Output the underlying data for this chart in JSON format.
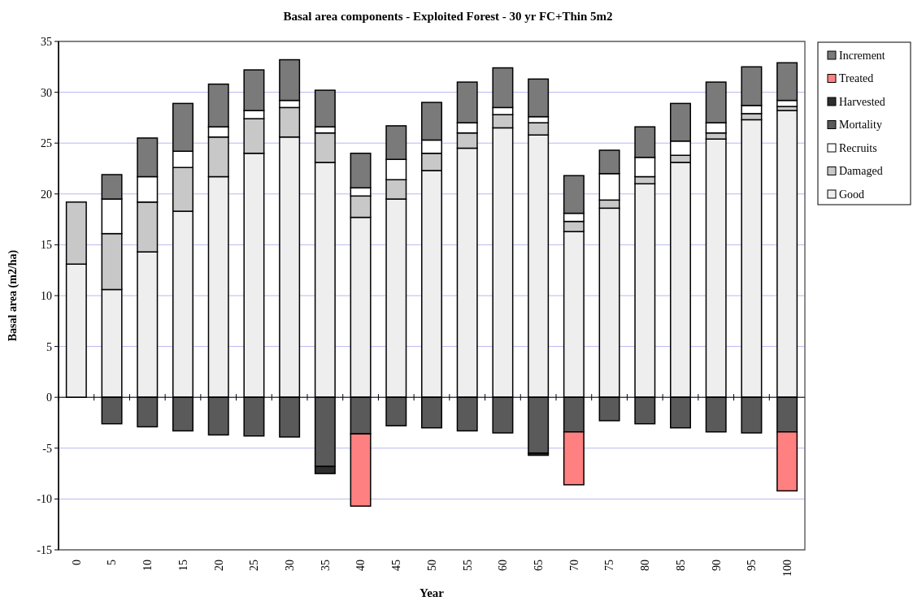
{
  "chart_data": {
    "type": "bar",
    "stacked": true,
    "title": "Basal area components - Exploited Forest - 30 yr FC+Thin 5m2",
    "xlabel": "Year",
    "ylabel": "Basal area (m2/ha)",
    "categories": [
      "0",
      "5",
      "10",
      "15",
      "20",
      "25",
      "30",
      "35",
      "40",
      "45",
      "50",
      "55",
      "60",
      "65",
      "70",
      "75",
      "80",
      "85",
      "90",
      "95",
      "100"
    ],
    "ylim": [
      -15,
      35
    ],
    "yticks": [
      -15,
      -10,
      -5,
      0,
      5,
      10,
      15,
      20,
      25,
      30,
      35
    ],
    "grid": "y",
    "legend": "right",
    "series": [
      {
        "name": "Good",
        "color": "#eeeeee",
        "values": [
          13.1,
          10.6,
          14.3,
          18.3,
          21.7,
          24.0,
          25.6,
          23.1,
          17.7,
          19.5,
          22.3,
          24.5,
          26.5,
          25.8,
          16.3,
          18.6,
          21.0,
          23.1,
          25.4,
          27.3,
          28.2
        ]
      },
      {
        "name": "Damaged",
        "color": "#c8c8c8",
        "values": [
          6.1,
          5.5,
          4.9,
          4.3,
          3.9,
          3.4,
          2.9,
          2.9,
          2.1,
          1.9,
          1.7,
          1.5,
          1.3,
          1.2,
          1.0,
          0.8,
          0.7,
          0.7,
          0.6,
          0.6,
          0.4
        ]
      },
      {
        "name": "Recruits",
        "color": "#ffffff",
        "values": [
          null,
          3.4,
          2.5,
          1.6,
          1.0,
          0.8,
          0.7,
          0.6,
          0.8,
          2.0,
          1.3,
          1.0,
          0.7,
          0.6,
          0.8,
          2.6,
          1.9,
          1.4,
          1.0,
          0.8,
          0.6
        ]
      },
      {
        "name": "Mortality",
        "color": "#5a5a5a",
        "values": [
          null,
          -2.6,
          -2.9,
          -3.3,
          -3.7,
          -3.8,
          -3.9,
          -6.8,
          -3.6,
          -2.8,
          -3.0,
          -3.3,
          -3.5,
          -5.5,
          -3.4,
          -2.3,
          -2.6,
          -3.0,
          -3.4,
          -3.5,
          -3.4
        ]
      },
      {
        "name": "Harvested",
        "color": "#2e2e2e",
        "values": [
          null,
          null,
          null,
          null,
          null,
          null,
          null,
          -0.7,
          null,
          null,
          null,
          null,
          null,
          -0.2,
          null,
          null,
          null,
          null,
          null,
          null,
          null
        ]
      },
      {
        "name": "Treated",
        "color": "#ff8080",
        "values": [
          null,
          null,
          null,
          null,
          null,
          null,
          null,
          null,
          -7.1,
          null,
          null,
          null,
          null,
          null,
          -5.2,
          null,
          null,
          null,
          null,
          null,
          -5.8
        ]
      },
      {
        "name": "Increment",
        "color": "#7a7a7a",
        "values": [
          null,
          2.4,
          3.8,
          4.7,
          4.2,
          4.0,
          4.0,
          3.6,
          3.4,
          3.3,
          3.7,
          4.0,
          3.9,
          3.7,
          3.7,
          2.3,
          3.0,
          3.7,
          4.0,
          3.8,
          3.7
        ]
      }
    ]
  }
}
